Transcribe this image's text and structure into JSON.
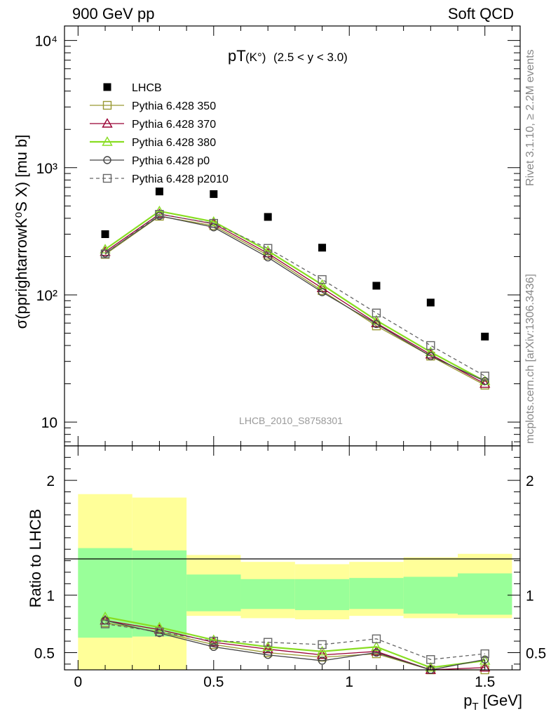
{
  "header": {
    "left": "900 GeV pp",
    "right": "Soft QCD"
  },
  "side_labels": {
    "rivet": "Rivet 3.1.10, ≥ 2.2M events",
    "mcplots": "mcplots.cern.ch [arXiv:1306.3436]"
  },
  "watermark": "LHCB_2010_S8758301",
  "plot_title": {
    "main": "pT",
    "particle": "(K°)",
    "range": "(2.5 < y < 3.0)"
  },
  "colors": {
    "band_inner": "#99ff99",
    "band_outer": "#ffff99",
    "lhcb": "#000000",
    "p350": "#999933",
    "p370": "#990033",
    "p380": "#88dd22",
    "p0": "#444444",
    "p2010": "#666666"
  },
  "chart_data": [
    {
      "type": "scatter",
      "title": "pT(K°) (2.5 < y < 3.0)",
      "ylabel": "σ(pprightarrowK⁰S X) [mu b]",
      "yscale": "log",
      "ylim": [
        6.5,
        13000
      ],
      "xlim": [
        -0.05,
        1.63
      ],
      "x": [
        0.1,
        0.3,
        0.5,
        0.7,
        0.9,
        1.1,
        1.3,
        1.5
      ],
      "x_ticks": [
        "0",
        "0.5",
        "1",
        "1.5"
      ],
      "y_ticks": [
        "10",
        "10²",
        "10³",
        "10⁴"
      ],
      "series": [
        {
          "key": "lhcb",
          "name": "LHCB",
          "marker": "filled-square",
          "line": "none",
          "values": [
            300,
            650,
            620,
            410,
            235,
            118,
            87,
            47
          ]
        },
        {
          "key": "p350",
          "name": "Pythia 6.428 350",
          "marker": "open-square",
          "line": "solid",
          "values": [
            208,
            415,
            350,
            205,
            108,
            57,
            33,
            19.5
          ]
        },
        {
          "key": "p370",
          "name": "Pythia 6.428 370",
          "marker": "open-triangle",
          "line": "solid",
          "values": [
            218,
            432,
            362,
            212,
            113,
            60,
            34,
            20
          ]
        },
        {
          "key": "p380",
          "name": "Pythia 6.428 380",
          "marker": "open-triangle",
          "line": "solid",
          "values": [
            228,
            455,
            376,
            222,
            120,
            63,
            35.5,
            21
          ]
        },
        {
          "key": "p0",
          "name": "Pythia 6.428 p0",
          "marker": "open-circle",
          "line": "solid",
          "values": [
            212,
            418,
            340,
            197,
            105,
            59,
            33,
            21
          ]
        },
        {
          "key": "p2010",
          "name": "Pythia 6.428 p2010",
          "marker": "open-square",
          "line": "dashed",
          "values": [
            210,
            430,
            365,
            232,
            132,
            72,
            40,
            23
          ]
        }
      ]
    },
    {
      "type": "line",
      "title": "Ratio to LHCB",
      "xlabel": "p_T [GeV]",
      "ylabel": "Ratio to LHCB",
      "ylim": [
        0.35,
        2.3
      ],
      "xlim": [
        -0.05,
        1.63
      ],
      "x": [
        0.1,
        0.3,
        0.5,
        0.7,
        0.9,
        1.1,
        1.3,
        1.5
      ],
      "x_ticks": [
        "0",
        "0.5",
        "1",
        "1.5"
      ],
      "y_ticks": [
        "0.5",
        "1",
        "2"
      ],
      "bands": {
        "bins": [
          [
            0,
            0.2
          ],
          [
            0.2,
            0.4
          ],
          [
            0.4,
            0.6
          ],
          [
            0.6,
            0.8
          ],
          [
            0.8,
            1.0
          ],
          [
            1.0,
            1.2
          ],
          [
            1.2,
            1.4
          ],
          [
            1.4,
            1.6
          ]
        ],
        "outer_low": [
          0.3,
          0.3,
          0.82,
          0.8,
          0.79,
          0.82,
          0.8,
          0.8
        ],
        "outer_high": [
          1.88,
          1.85,
          1.35,
          1.29,
          1.27,
          1.29,
          1.33,
          1.36
        ],
        "inner_low": [
          0.63,
          0.64,
          0.86,
          0.88,
          0.87,
          0.88,
          0.84,
          0.83
        ],
        "inner_high": [
          1.41,
          1.39,
          1.18,
          1.14,
          1.14,
          1.15,
          1.16,
          1.19
        ]
      },
      "series": [
        {
          "key": "p350",
          "name": "Pythia 6.428 350",
          "marker": "open-square",
          "line": "solid",
          "values": [
            0.76,
            0.68,
            0.57,
            0.5,
            0.46,
            0.49,
            0.3,
            0.34
          ]
        },
        {
          "key": "p370",
          "name": "Pythia 6.428 370",
          "marker": "open-triangle",
          "line": "solid",
          "values": [
            0.78,
            0.7,
            0.59,
            0.53,
            0.48,
            0.51,
            0.31,
            0.37
          ]
        },
        {
          "key": "p380",
          "name": "Pythia 6.428 380",
          "marker": "open-triangle",
          "line": "solid",
          "values": [
            0.81,
            0.72,
            0.61,
            0.55,
            0.51,
            0.55,
            0.37,
            0.43
          ]
        },
        {
          "key": "p0",
          "name": "Pythia 6.428 p0",
          "marker": "open-circle",
          "line": "solid",
          "values": [
            0.78,
            0.67,
            0.55,
            0.48,
            0.43,
            0.5,
            0.32,
            0.44
          ]
        },
        {
          "key": "p2010",
          "name": "Pythia 6.428 p2010",
          "marker": "open-square",
          "line": "dashed",
          "values": [
            0.75,
            0.68,
            0.6,
            0.59,
            0.57,
            0.62,
            0.44,
            0.49
          ]
        }
      ]
    }
  ]
}
